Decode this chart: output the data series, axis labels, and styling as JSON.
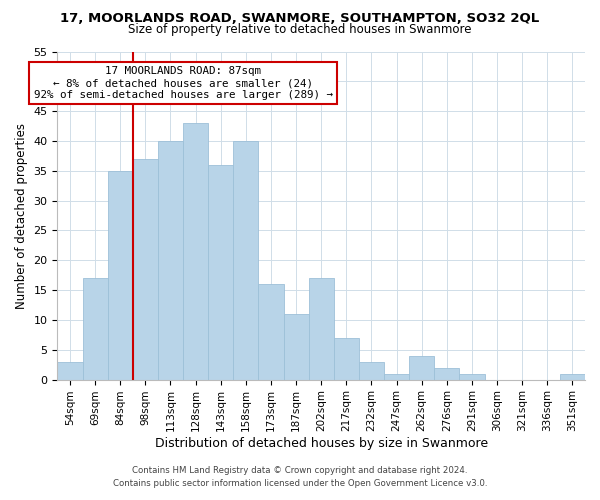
{
  "title": "17, MOORLANDS ROAD, SWANMORE, SOUTHAMPTON, SO32 2QL",
  "subtitle": "Size of property relative to detached houses in Swanmore",
  "xlabel": "Distribution of detached houses by size in Swanmore",
  "ylabel": "Number of detached properties",
  "bar_labels": [
    "54sqm",
    "69sqm",
    "84sqm",
    "98sqm",
    "113sqm",
    "128sqm",
    "143sqm",
    "158sqm",
    "173sqm",
    "187sqm",
    "202sqm",
    "217sqm",
    "232sqm",
    "247sqm",
    "262sqm",
    "276sqm",
    "291sqm",
    "306sqm",
    "321sqm",
    "336sqm",
    "351sqm"
  ],
  "bar_heights": [
    3,
    17,
    35,
    37,
    40,
    43,
    36,
    40,
    16,
    11,
    17,
    7,
    3,
    1,
    4,
    2,
    1,
    0,
    0,
    0,
    1
  ],
  "bar_color": "#b8d4e8",
  "bar_edge_color": "#9dc0d8",
  "vline_color": "#cc0000",
  "annotation_title": "17 MOORLANDS ROAD: 87sqm",
  "annotation_line1": "← 8% of detached houses are smaller (24)",
  "annotation_line2": "92% of semi-detached houses are larger (289) →",
  "annotation_box_facecolor": "#ffffff",
  "annotation_box_edgecolor": "#cc0000",
  "ylim": [
    0,
    55
  ],
  "yticks": [
    0,
    5,
    10,
    15,
    20,
    25,
    30,
    35,
    40,
    45,
    50,
    55
  ],
  "grid_color": "#d0dde8",
  "footer1": "Contains HM Land Registry data © Crown copyright and database right 2024.",
  "footer2": "Contains public sector information licensed under the Open Government Licence v3.0."
}
